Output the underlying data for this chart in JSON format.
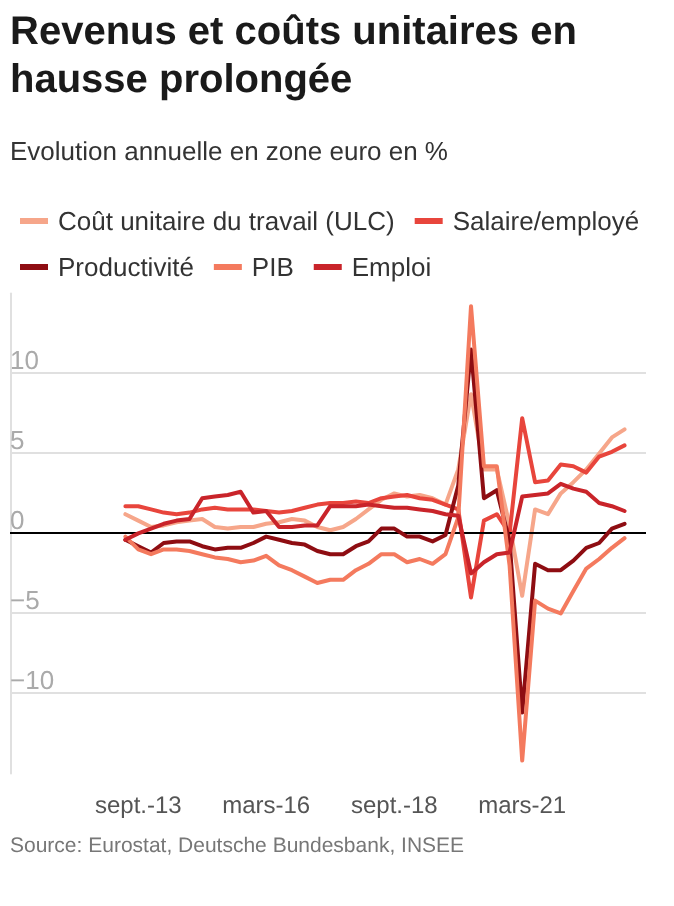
{
  "chart_data": {
    "type": "line",
    "title": "Revenus et coûts unitaires en hausse prolongée",
    "subtitle": "Evolution annuelle en zone euro en %",
    "annotations": [
      "Source: Eurostat, Deutsche Bundesbank, INSEE"
    ],
    "x": [
      "2013-06",
      "2013-09",
      "2013-12",
      "2014-03",
      "2014-06",
      "2014-09",
      "2014-12",
      "2015-03",
      "2015-06",
      "2015-09",
      "2015-12",
      "2016-03",
      "2016-06",
      "2016-09",
      "2016-12",
      "2017-03",
      "2017-06",
      "2017-09",
      "2017-12",
      "2018-03",
      "2018-06",
      "2018-09",
      "2018-12",
      "2019-03",
      "2019-06",
      "2019-09",
      "2019-12",
      "2020-03",
      "2020-06",
      "2020-09",
      "2020-12",
      "2021-03",
      "2021-06",
      "2021-09",
      "2021-12",
      "2022-03",
      "2022-06",
      "2022-09",
      "2022-12",
      "2023-03"
    ],
    "series": [
      {
        "name": "Coût unitaire du travail (ULC)",
        "color": "#f6a68a",
        "values": [
          1.2,
          0.8,
          0.4,
          0.5,
          0.7,
          0.8,
          0.9,
          0.4,
          0.3,
          0.4,
          0.4,
          0.6,
          0.7,
          0.9,
          0.8,
          0.4,
          0.2,
          0.4,
          0.9,
          1.5,
          2.1,
          2.5,
          2.3,
          2.4,
          2.2,
          1.8,
          4.0,
          8.7,
          4.0,
          4.0,
          0.5,
          -3.9,
          1.5,
          1.2,
          2.5,
          3.2,
          4.0,
          5.0,
          6.0,
          6.5
        ]
      },
      {
        "name": "Salaire/employé",
        "color": "#e8453c",
        "values": [
          1.7,
          1.7,
          1.5,
          1.3,
          1.2,
          1.3,
          1.5,
          1.6,
          1.5,
          1.5,
          1.5,
          1.4,
          1.3,
          1.4,
          1.6,
          1.8,
          1.9,
          1.9,
          2.0,
          1.9,
          2.2,
          2.3,
          2.4,
          2.2,
          2.1,
          1.8,
          1.5,
          -4.0,
          0.8,
          1.2,
          0.0,
          7.2,
          3.2,
          3.3,
          4.3,
          4.2,
          3.8,
          4.8,
          5.1,
          5.5
        ]
      },
      {
        "name": "Productivité",
        "color": "#8e0d12",
        "values": [
          -0.4,
          -0.8,
          -1.2,
          -0.6,
          -0.5,
          -0.5,
          -0.8,
          -1.0,
          -0.9,
          -0.9,
          -0.6,
          -0.2,
          -0.4,
          -0.6,
          -0.7,
          -1.1,
          -1.3,
          -1.3,
          -0.8,
          -0.5,
          0.3,
          0.3,
          -0.2,
          -0.2,
          -0.5,
          -0.1,
          3.0,
          11.5,
          2.2,
          2.7,
          -0.5,
          -11.2,
          -1.9,
          -2.3,
          -2.3,
          -1.7,
          -0.9,
          -0.6,
          0.3,
          0.6
        ]
      },
      {
        "name": "PIB",
        "color": "#f47a5e",
        "values": [
          -0.2,
          -1.0,
          -1.3,
          -1.0,
          -1.0,
          -1.1,
          -1.3,
          -1.5,
          -1.6,
          -1.8,
          -1.7,
          -1.4,
          -2.0,
          -2.3,
          -2.7,
          -3.1,
          -2.9,
          -2.9,
          -2.3,
          -1.9,
          -1.3,
          -1.3,
          -1.8,
          -1.6,
          -1.9,
          -1.3,
          1.0,
          14.2,
          4.2,
          4.2,
          -2.0,
          -14.2,
          -4.2,
          -4.7,
          -5.0,
          -3.6,
          -2.2,
          -1.6,
          -0.9,
          -0.3
        ]
      },
      {
        "name": "Emploi",
        "color": "#c9242a",
        "values": [
          -0.4,
          0.0,
          0.3,
          0.6,
          0.8,
          0.9,
          2.2,
          2.3,
          2.4,
          2.6,
          1.3,
          1.4,
          0.4,
          0.4,
          0.5,
          0.5,
          1.7,
          1.7,
          1.7,
          1.8,
          1.7,
          1.6,
          1.6,
          1.5,
          1.4,
          1.2,
          1.1,
          -2.5,
          -1.8,
          -1.3,
          -1.2,
          2.3,
          2.4,
          2.5,
          3.1,
          2.8,
          2.6,
          1.9,
          1.7,
          1.4
        ]
      }
    ],
    "xlim": [
      "2011-03",
      "2023-08"
    ],
    "xticks": [
      {
        "value": "2013-09",
        "label": "sept.-13"
      },
      {
        "value": "2016-03",
        "label": "mars-16"
      },
      {
        "value": "2018-09",
        "label": "sept.-18"
      },
      {
        "value": "2021-03",
        "label": "mars-21"
      }
    ],
    "yticks": [
      {
        "value": -10,
        "label": "−10"
      },
      {
        "value": -5,
        "label": "−5"
      },
      0,
      5,
      10
    ],
    "ylim": [
      -15,
      15
    ],
    "ref_lines": [
      {
        "axis": "y",
        "value": 0,
        "color": "#000000"
      }
    ],
    "grid": "y",
    "legend": "top",
    "marker": "none",
    "line_style": "solid"
  }
}
